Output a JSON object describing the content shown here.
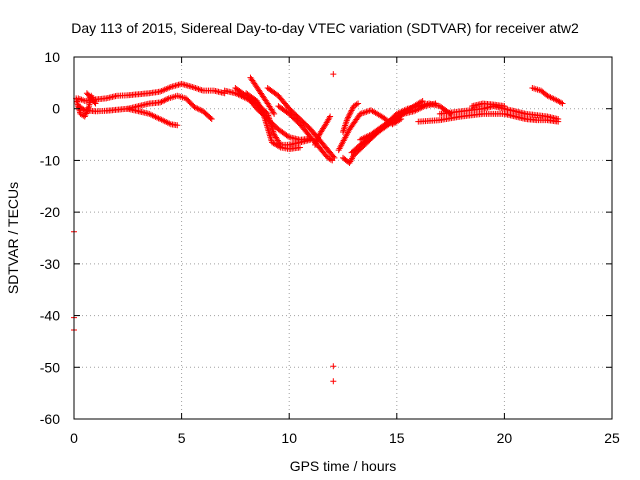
{
  "chart_data": {
    "type": "scatter",
    "title": "Day 113 of 2015, Sidereal Day-to-day VTEC variation (SDTVAR) for receiver atw2",
    "xlabel": "GPS time / hours",
    "ylabel": "SDTVAR / TECUs",
    "xlim": [
      0,
      25
    ],
    "ylim": [
      -60,
      10
    ],
    "x_ticks": [
      "0",
      "5",
      "10",
      "15",
      "20",
      "25"
    ],
    "y_ticks": [
      "10",
      "0",
      "-10",
      "-20",
      "-30",
      "-40",
      "-50",
      "-60"
    ],
    "grid": true,
    "marker": "+",
    "color": "#ff0000",
    "series": [
      {
        "name": "SDTVAR",
        "tracks": [
          [
            [
              0.2,
              2.0
            ],
            [
              0.5,
              1.5
            ],
            [
              1.0,
              1.8
            ],
            [
              1.5,
              2.0
            ],
            [
              2.0,
              2.5
            ],
            [
              2.5,
              2.6
            ],
            [
              3.0,
              2.8
            ],
            [
              3.5,
              3.0
            ],
            [
              4.0,
              3.3
            ],
            [
              4.5,
              4.2
            ],
            [
              5.0,
              4.8
            ],
            [
              5.5,
              4.2
            ],
            [
              6.0,
              3.5
            ],
            [
              6.5,
              3.5
            ],
            [
              7.0,
              3.0
            ]
          ],
          [
            [
              0.2,
              0.5
            ],
            [
              0.5,
              -0.3
            ],
            [
              1.0,
              -0.5
            ],
            [
              1.5,
              -0.4
            ],
            [
              2.0,
              -0.2
            ],
            [
              2.5,
              0.0
            ],
            [
              3.0,
              0.5
            ],
            [
              3.5,
              1.0
            ],
            [
              4.0,
              1.2
            ],
            [
              4.4,
              2.0
            ],
            [
              4.8,
              2.5
            ],
            [
              5.2,
              2.0
            ],
            [
              5.6,
              0.3
            ],
            [
              6.0,
              -0.5
            ],
            [
              6.4,
              -2.0
            ]
          ],
          [
            [
              2.5,
              0.0
            ],
            [
              3.0,
              -0.5
            ],
            [
              3.5,
              -1.0
            ],
            [
              4.0,
              -2.0
            ],
            [
              4.5,
              -3.0
            ],
            [
              4.8,
              -3.2
            ]
          ],
          [
            [
              7.0,
              3.5
            ],
            [
              7.5,
              3.0
            ],
            [
              8.0,
              2.0
            ],
            [
              8.5,
              1.0
            ],
            [
              9.0,
              -1.0
            ],
            [
              9.3,
              -5.0
            ],
            [
              9.6,
              -7.0
            ],
            [
              10.0,
              -7.0
            ],
            [
              10.5,
              -6.5
            ],
            [
              11.0,
              -6.0
            ]
          ],
          [
            [
              7.5,
              4.0
            ],
            [
              8.0,
              2.5
            ],
            [
              8.5,
              0.0
            ],
            [
              9.0,
              -2.0
            ],
            [
              9.5,
              -4.0
            ],
            [
              10.0,
              -5.5
            ],
            [
              10.5,
              -6.0
            ],
            [
              11.0,
              -5.8
            ]
          ],
          [
            [
              8.0,
              3.0
            ],
            [
              8.5,
              1.5
            ],
            [
              8.8,
              -1.0
            ],
            [
              9.2,
              -6.5
            ],
            [
              9.6,
              -7.5
            ],
            [
              10.0,
              -7.8
            ],
            [
              10.5,
              -7.5
            ]
          ],
          [
            [
              8.2,
              6.0
            ],
            [
              8.6,
              3.5
            ],
            [
              9.0,
              1.0
            ],
            [
              9.3,
              -1.0
            ]
          ],
          [
            [
              9.0,
              4.0
            ],
            [
              9.5,
              2.5
            ],
            [
              10.0,
              0.0
            ],
            [
              10.5,
              -2.0
            ],
            [
              11.0,
              -4.0
            ],
            [
              11.4,
              -6.0
            ],
            [
              11.8,
              -8.0
            ],
            [
              12.1,
              -9.5
            ]
          ],
          [
            [
              9.5,
              0.5
            ],
            [
              10.0,
              -1.0
            ],
            [
              10.5,
              -3.0
            ],
            [
              11.0,
              -5.5
            ],
            [
              11.5,
              -8.0
            ],
            [
              11.8,
              -9.5
            ],
            [
              12.0,
              -10.0
            ]
          ],
          [
            [
              11.2,
              -7.0
            ],
            [
              11.4,
              -5.0
            ],
            [
              11.7,
              -3.0
            ],
            [
              11.9,
              -1.5
            ]
          ],
          [
            [
              12.5,
              -4.5
            ],
            [
              12.7,
              -2.0
            ],
            [
              13.0,
              0.5
            ],
            [
              13.2,
              1.0
            ]
          ],
          [
            [
              12.5,
              -9.5
            ],
            [
              12.8,
              -10.5
            ],
            [
              13.0,
              -9.0
            ],
            [
              13.5,
              -7.0
            ],
            [
              14.0,
              -5.0
            ],
            [
              14.5,
              -3.0
            ],
            [
              15.0,
              -1.0
            ],
            [
              15.5,
              0.0
            ],
            [
              16.0,
              0.5
            ],
            [
              16.5,
              1.0
            ],
            [
              17.0,
              0.5
            ],
            [
              17.5,
              -1.0
            ]
          ],
          [
            [
              12.9,
              -8.5
            ],
            [
              13.3,
              -7.0
            ],
            [
              13.8,
              -5.5
            ],
            [
              14.3,
              -4.0
            ],
            [
              14.8,
              -2.5
            ],
            [
              15.3,
              -1.0
            ],
            [
              15.8,
              0.5
            ],
            [
              16.2,
              1.5
            ]
          ],
          [
            [
              12.3,
              -8.0
            ],
            [
              12.8,
              -4.0
            ],
            [
              13.3,
              -1.0
            ],
            [
              13.8,
              -0.3
            ],
            [
              14.3,
              -1.5
            ],
            [
              14.8,
              -3.0
            ],
            [
              15.2,
              -2.0
            ]
          ],
          [
            [
              13.3,
              -6.0
            ],
            [
              13.8,
              -5.0
            ],
            [
              14.3,
              -3.5
            ],
            [
              14.8,
              -2.0
            ],
            [
              15.3,
              -1.0
            ],
            [
              15.8,
              -0.5
            ],
            [
              16.3,
              0.5
            ],
            [
              16.8,
              1.0
            ]
          ],
          [
            [
              16.0,
              -2.5
            ],
            [
              17.0,
              -2.2
            ],
            [
              18.0,
              -1.5
            ],
            [
              19.0,
              -1.0
            ],
            [
              20.0,
              -1.0
            ],
            [
              20.5,
              -1.5
            ],
            [
              21.0,
              -2.0
            ],
            [
              21.5,
              -2.2
            ],
            [
              22.0,
              -2.2
            ],
            [
              22.5,
              -2.5
            ]
          ],
          [
            [
              17.0,
              -1.0
            ],
            [
              18.0,
              -0.5
            ],
            [
              19.0,
              0.0
            ],
            [
              19.5,
              0.5
            ],
            [
              20.0,
              0.0
            ],
            [
              20.5,
              -0.5
            ],
            [
              21.0,
              -1.0
            ],
            [
              22.0,
              -1.5
            ],
            [
              22.5,
              -2.0
            ]
          ],
          [
            [
              18.5,
              0.5
            ],
            [
              19.0,
              1.0
            ],
            [
              19.5,
              0.8
            ],
            [
              20.0,
              0.5
            ]
          ],
          [
            [
              21.3,
              4.0
            ],
            [
              21.7,
              3.5
            ],
            [
              22.0,
              2.5
            ],
            [
              22.5,
              1.5
            ],
            [
              22.7,
              1.0
            ]
          ],
          [
            [
              0.1,
              2.0
            ],
            [
              0.2,
              0.5
            ],
            [
              0.3,
              -1.0
            ],
            [
              0.5,
              -1.5
            ],
            [
              0.7,
              0.5
            ],
            [
              0.8,
              2.5
            ],
            [
              1.0,
              1.0
            ],
            [
              0.6,
              3.0
            ]
          ]
        ],
        "isolated_points": [
          {
            "x": 12.05,
            "y": 6.7
          },
          {
            "x": 12.05,
            "y": -49.8
          },
          {
            "x": 12.05,
            "y": -52.7
          },
          {
            "x": 0.0,
            "y": -23.8
          },
          {
            "x": 0.0,
            "y": -40.4
          },
          {
            "x": 0.0,
            "y": -42.8
          }
        ]
      }
    ]
  }
}
